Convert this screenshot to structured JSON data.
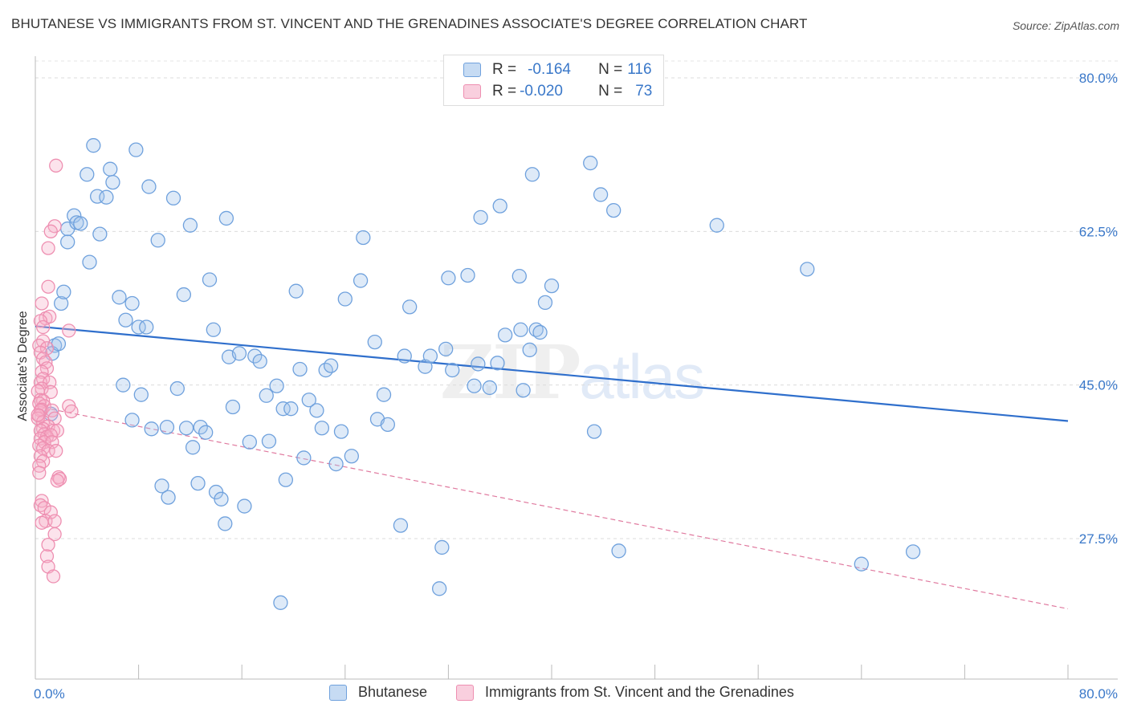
{
  "title": "BHUTANESE VS IMMIGRANTS FROM ST. VINCENT AND THE GRENADINES ASSOCIATE'S DEGREE CORRELATION CHART",
  "source": "Source: ZipAtlas.com",
  "watermark": {
    "zip": "ZIP",
    "atlas": "atlas"
  },
  "colors": {
    "blue": "#6fa1dd",
    "blue_fill": "rgba(160,195,235,0.35)",
    "blue_line": "#2f6fcc",
    "pink": "#ee8fb1",
    "pink_fill": "rgba(245,175,200,0.35)",
    "pink_line": "#e07a9f",
    "tick": "#3a78c9"
  },
  "legend_top": [
    {
      "r_label": "R = ",
      "r_value": "-0.164",
      "n_label": "N = ",
      "n_value": "116"
    },
    {
      "r_label": "R = ",
      "r_value": "-0.020",
      "n_label": "N = ",
      "n_value": "73"
    }
  ],
  "chart_data": {
    "type": "scatter",
    "title": "BHUTANESE VS IMMIGRANTS FROM ST. VINCENT AND THE GRENADINES ASSOCIATE'S DEGREE CORRELATION CHART",
    "xlabel": "",
    "ylabel": "Associate's Degree",
    "xlim": [
      0,
      80
    ],
    "ylim": [
      10,
      82
    ],
    "x_tick_labels": [
      "0.0%",
      "80.0%"
    ],
    "y_ticks": [
      {
        "value": 80,
        "label": "80.0%"
      },
      {
        "value": 62.5,
        "label": "62.5%"
      },
      {
        "value": 45,
        "label": "45.0%"
      },
      {
        "value": 27.5,
        "label": "27.5%"
      }
    ],
    "grid": true,
    "legend_position": "bottom",
    "series": [
      {
        "name": "Bhutanese",
        "trend": [
          [
            0,
            51.7
          ],
          [
            80,
            40.9
          ]
        ],
        "points": [
          [
            1.5,
            49.5
          ],
          [
            1.3,
            48.6
          ],
          [
            1.8,
            49.7
          ],
          [
            1.2,
            41.7
          ],
          [
            2.0,
            54.3
          ],
          [
            2.2,
            55.6
          ],
          [
            2.5,
            61.3
          ],
          [
            2.5,
            62.8
          ],
          [
            3.0,
            64.3
          ],
          [
            3.2,
            63.5
          ],
          [
            3.5,
            63.4
          ],
          [
            4.0,
            69.0
          ],
          [
            4.5,
            72.3
          ],
          [
            4.2,
            59.0
          ],
          [
            4.8,
            66.5
          ],
          [
            5.5,
            66.4
          ],
          [
            5.0,
            62.2
          ],
          [
            5.8,
            69.6
          ],
          [
            6.0,
            68.1
          ],
          [
            6.5,
            55.0
          ],
          [
            7.0,
            52.4
          ],
          [
            6.8,
            45.0
          ],
          [
            7.5,
            54.3
          ],
          [
            7.5,
            41.0
          ],
          [
            7.8,
            71.8
          ],
          [
            8.0,
            51.6
          ],
          [
            8.2,
            43.9
          ],
          [
            8.6,
            51.6
          ],
          [
            8.8,
            67.6
          ],
          [
            9.0,
            40.0
          ],
          [
            9.5,
            61.5
          ],
          [
            9.8,
            33.5
          ],
          [
            10.2,
            40.2
          ],
          [
            10.3,
            32.2
          ],
          [
            10.7,
            66.3
          ],
          [
            11.0,
            44.6
          ],
          [
            11.5,
            55.3
          ],
          [
            11.7,
            40.1
          ],
          [
            12.0,
            63.2
          ],
          [
            12.2,
            37.9
          ],
          [
            12.6,
            33.8
          ],
          [
            12.8,
            40.2
          ],
          [
            13.2,
            39.6
          ],
          [
            13.5,
            57.0
          ],
          [
            13.8,
            51.3
          ],
          [
            14.0,
            32.8
          ],
          [
            14.4,
            32.0
          ],
          [
            14.7,
            29.2
          ],
          [
            14.8,
            64.0
          ],
          [
            15.0,
            48.2
          ],
          [
            15.3,
            42.5
          ],
          [
            15.8,
            48.6
          ],
          [
            16.2,
            31.2
          ],
          [
            16.6,
            38.5
          ],
          [
            17.0,
            48.3
          ],
          [
            17.4,
            47.7
          ],
          [
            17.9,
            43.8
          ],
          [
            18.1,
            38.6
          ],
          [
            18.7,
            44.9
          ],
          [
            19.0,
            20.2
          ],
          [
            19.2,
            42.3
          ],
          [
            19.4,
            34.2
          ],
          [
            19.8,
            42.3
          ],
          [
            20.2,
            55.7
          ],
          [
            20.5,
            46.8
          ],
          [
            20.8,
            36.7
          ],
          [
            21.2,
            43.3
          ],
          [
            21.8,
            42.1
          ],
          [
            22.2,
            40.1
          ],
          [
            22.5,
            46.7
          ],
          [
            22.9,
            47.2
          ],
          [
            23.3,
            36.0
          ],
          [
            23.7,
            39.7
          ],
          [
            24.0,
            54.8
          ],
          [
            24.5,
            36.9
          ],
          [
            25.2,
            56.9
          ],
          [
            25.4,
            61.8
          ],
          [
            26.3,
            49.9
          ],
          [
            26.5,
            41.1
          ],
          [
            27.0,
            43.9
          ],
          [
            27.3,
            40.5
          ],
          [
            28.3,
            29.0
          ],
          [
            28.6,
            48.3
          ],
          [
            29.0,
            53.9
          ],
          [
            30.2,
            47.1
          ],
          [
            30.6,
            48.3
          ],
          [
            31.5,
            26.5
          ],
          [
            31.3,
            21.8
          ],
          [
            31.8,
            49.1
          ],
          [
            32.0,
            57.2
          ],
          [
            32.3,
            46.7
          ],
          [
            33.5,
            57.5
          ],
          [
            34.0,
            44.9
          ],
          [
            34.3,
            47.4
          ],
          [
            34.5,
            64.1
          ],
          [
            35.2,
            44.7
          ],
          [
            35.8,
            47.5
          ],
          [
            36.0,
            65.4
          ],
          [
            36.4,
            50.7
          ],
          [
            37.5,
            57.4
          ],
          [
            37.6,
            51.3
          ],
          [
            37.8,
            44.4
          ],
          [
            38.3,
            49.0
          ],
          [
            38.8,
            51.3
          ],
          [
            38.5,
            69.0
          ],
          [
            39.1,
            51.0
          ],
          [
            39.5,
            54.4
          ],
          [
            40.0,
            56.3
          ],
          [
            43.0,
            70.3
          ],
          [
            43.3,
            39.7
          ],
          [
            43.8,
            66.7
          ],
          [
            44.8,
            64.9
          ],
          [
            45.2,
            26.1
          ],
          [
            52.8,
            63.2
          ],
          [
            59.8,
            58.2
          ],
          [
            64.0,
            24.6
          ],
          [
            68.0,
            26.0
          ]
        ]
      },
      {
        "name": "Immigrants from St. Vincent and the Grenadines",
        "trend": [
          [
            0,
            42.6
          ],
          [
            80,
            19.5
          ]
        ],
        "dashed": true,
        "points": [
          [
            1.6,
            70.0
          ],
          [
            1.5,
            63.1
          ],
          [
            1.2,
            62.5
          ],
          [
            1.0,
            60.6
          ],
          [
            1.0,
            56.2
          ],
          [
            0.5,
            54.3
          ],
          [
            0.8,
            52.6
          ],
          [
            1.1,
            52.8
          ],
          [
            0.4,
            52.3
          ],
          [
            0.6,
            51.6
          ],
          [
            2.6,
            51.2
          ],
          [
            0.6,
            50.0
          ],
          [
            0.3,
            49.5
          ],
          [
            0.9,
            49.2
          ],
          [
            0.4,
            48.7
          ],
          [
            0.6,
            48.0
          ],
          [
            0.8,
            47.6
          ],
          [
            0.9,
            46.9
          ],
          [
            0.5,
            46.5
          ],
          [
            0.6,
            45.7
          ],
          [
            0.4,
            45.3
          ],
          [
            1.1,
            45.3
          ],
          [
            0.5,
            44.6
          ],
          [
            0.2,
            44.3
          ],
          [
            1.2,
            44.2
          ],
          [
            0.4,
            43.3
          ],
          [
            0.6,
            43.2
          ],
          [
            0.3,
            42.9
          ],
          [
            0.7,
            42.6
          ],
          [
            2.6,
            42.6
          ],
          [
            0.5,
            42.2
          ],
          [
            0.4,
            42.1
          ],
          [
            1.3,
            42.1
          ],
          [
            2.8,
            42.0
          ],
          [
            0.3,
            41.5
          ],
          [
            0.2,
            41.2
          ],
          [
            1.5,
            41.2
          ],
          [
            0.6,
            40.8
          ],
          [
            1.0,
            40.3
          ],
          [
            0.6,
            40.0
          ],
          [
            0.4,
            39.8
          ],
          [
            1.4,
            39.8
          ],
          [
            1.7,
            39.8
          ],
          [
            0.7,
            39.4
          ],
          [
            0.9,
            39.1
          ],
          [
            1.2,
            39.3
          ],
          [
            0.4,
            38.9
          ],
          [
            0.7,
            38.5
          ],
          [
            1.3,
            38.5
          ],
          [
            0.3,
            38.1
          ],
          [
            0.6,
            37.8
          ],
          [
            1.0,
            37.5
          ],
          [
            1.6,
            37.5
          ],
          [
            0.4,
            36.9
          ],
          [
            0.6,
            36.3
          ],
          [
            0.3,
            35.8
          ],
          [
            0.3,
            35.0
          ],
          [
            1.8,
            34.5
          ],
          [
            1.9,
            34.3
          ],
          [
            1.7,
            34.1
          ],
          [
            0.5,
            31.8
          ],
          [
            0.4,
            31.3
          ],
          [
            0.7,
            31.0
          ],
          [
            1.2,
            30.5
          ],
          [
            0.8,
            29.5
          ],
          [
            0.5,
            29.3
          ],
          [
            1.5,
            29.5
          ],
          [
            1.5,
            28.0
          ],
          [
            1.0,
            26.8
          ],
          [
            0.9,
            25.5
          ],
          [
            1.0,
            24.3
          ],
          [
            1.4,
            23.2
          ],
          [
            0.2,
            41.6
          ]
        ]
      }
    ]
  },
  "legend_bottom": [
    {
      "label": "Bhutanese"
    },
    {
      "label": "Immigrants from St. Vincent and the Grenadines"
    }
  ]
}
